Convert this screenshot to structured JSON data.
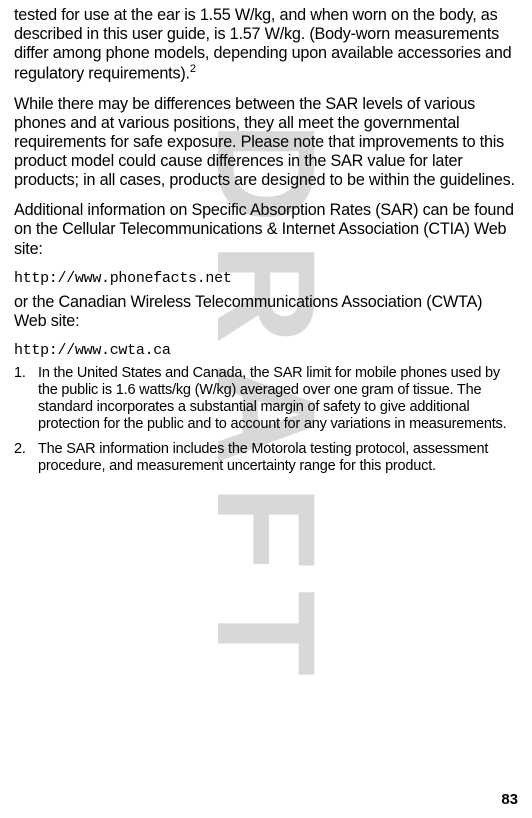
{
  "watermark": "DRAFT",
  "paragraphs": {
    "p1_part1": "tested for use at the ear is 1.55 W/kg, and when worn on the body, as described in this user guide, is 1.57 W/kg. (Body-worn measurements differ among phone models, depending upon available accessories and regulatory requirements).",
    "p1_sup": "2",
    "p2": "While there may be differences between the SAR levels of various phones and at various positions, they all meet the governmental requirements for safe exposure. Please note that improvements to this product model could cause differences in the SAR value for later products; in all cases, products are designed to be within the guidelines.",
    "p3": "Additional information on Specific Absorption Rates (SAR) can be found on the Cellular Telecommunications & Internet Association (CTIA) Web site:",
    "url1": "http://www.phonefacts.net",
    "p4": "or the Canadian Wireless Telecommunications Association (CWTA) Web site:",
    "url2": "http://www.cwta.ca"
  },
  "footnotes": [
    {
      "num": "1.",
      "text": "In the United States and Canada, the SAR limit for mobile phones used by the public is 1.6 watts/kg (W/kg) averaged over one gram of tissue. The standard incorporates a substantial margin of safety to give additional protection for the public and to account for any variations in measurements."
    },
    {
      "num": "2.",
      "text": "The SAR information includes the Motorola testing protocol, assessment procedure, and measurement uncertainty range for this product."
    }
  ],
  "pageNumber": "83"
}
